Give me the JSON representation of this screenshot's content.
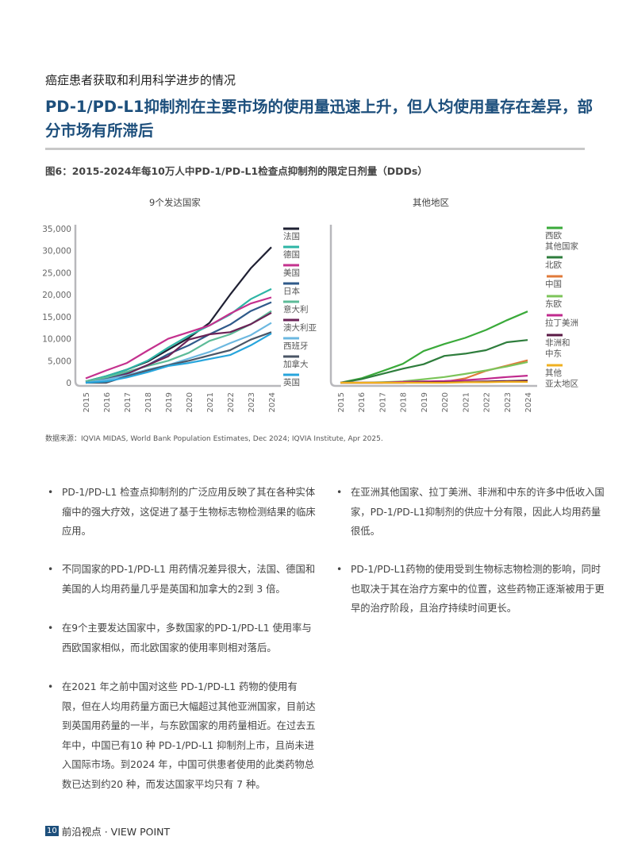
{
  "section_title": "癌症患者获取和利用科学进步的情况",
  "headline": "PD-1/PD-L1抑制剂在主要市场的使用量迅速上升，但人均使用量存在差异，部分市场有所滞后",
  "figure_title": "图6：2015-2024年每10万人中PD-1/PD-L1检查点抑制剂的限定日剂量（DDDs）",
  "source": "数据来源：IQVIA MIDAS, World Bank Population Estimates, Dec 2024; IQVIA Institute, Apr 2025.",
  "chart_data": [
    {
      "type": "line",
      "title": "9个发达国家",
      "x": [
        "2015",
        "2016",
        "2017",
        "2018",
        "2019",
        "2020",
        "2021",
        "2022",
        "2023",
        "2024"
      ],
      "ylim": [
        0,
        35000
      ],
      "yticks": [
        "0",
        "5,000",
        "10,000",
        "15,000",
        "20,000",
        "25,000",
        "30,000",
        "35,000"
      ],
      "legend": "right",
      "series": [
        {
          "name": "法国",
          "color": "#1f2033",
          "values": [
            300,
            1500,
            3000,
            4800,
            7500,
            10200,
            13600,
            20000,
            26000,
            30800
          ]
        },
        {
          "name": "德国",
          "color": "#2db5a5",
          "values": [
            300,
            1500,
            3000,
            5000,
            8000,
            10700,
            13000,
            15500,
            19000,
            21300
          ]
        },
        {
          "name": "美国",
          "color": "#c4318e",
          "values": [
            1000,
            2800,
            4500,
            7300,
            10000,
            11500,
            13000,
            15700,
            18000,
            19400
          ]
        },
        {
          "name": "日本",
          "color": "#2f5a8a",
          "values": [
            0,
            1000,
            2200,
            4000,
            6500,
            8500,
            11000,
            13200,
            16300,
            18300
          ]
        },
        {
          "name": "意大利",
          "color": "#5dbb98",
          "values": [
            300,
            1200,
            2500,
            3800,
            5000,
            6800,
            9500,
            11000,
            13300,
            16300
          ]
        },
        {
          "name": "澳大利亚",
          "color": "#6b2357",
          "values": [
            0,
            700,
            2000,
            4000,
            6000,
            9800,
            11000,
            11500,
            13300,
            15900
          ]
        },
        {
          "name": "西班牙",
          "color": "#6cb8e0",
          "values": [
            0,
            700,
            1700,
            3000,
            4000,
            5500,
            7000,
            9000,
            10800,
            13600
          ]
        },
        {
          "name": "加拿大",
          "color": "#4a5566",
          "values": [
            0,
            0,
            1500,
            2800,
            4000,
            5000,
            6200,
            7400,
            9800,
            11500
          ]
        },
        {
          "name": "英国",
          "color": "#27a5dc",
          "values": [
            0,
            300,
            1200,
            2400,
            3800,
            4500,
            5400,
            6300,
            8500,
            11200
          ]
        }
      ]
    },
    {
      "type": "line",
      "title": "其他地区",
      "x": [
        "2015",
        "2016",
        "2017",
        "2018",
        "2019",
        "2020",
        "2021",
        "2022",
        "2023",
        "2024"
      ],
      "ylim": [
        0,
        35000
      ],
      "legend": "right",
      "series": [
        {
          "name": "西欧其他国家",
          "color": "#3aaa3a",
          "values": [
            0,
            1000,
            2600,
            4300,
            7200,
            8800,
            10200,
            12000,
            14200,
            16200
          ]
        },
        {
          "name": "北欧",
          "color": "#2e7d3c",
          "values": [
            0,
            800,
            2000,
            3200,
            4200,
            6100,
            6600,
            7400,
            9200,
            9700
          ]
        },
        {
          "name": "中国",
          "color": "#e07a3a",
          "values": [
            0,
            0,
            0,
            0,
            100,
            200,
            1000,
            2700,
            3900,
            5100
          ]
        },
        {
          "name": "东欧",
          "color": "#7cc45a",
          "values": [
            0,
            0,
            100,
            300,
            800,
            1300,
            2000,
            2800,
            3700,
            4700
          ]
        },
        {
          "name": "拉丁美洲",
          "color": "#c02a8e",
          "values": [
            0,
            0,
            0,
            200,
            300,
            400,
            600,
            900,
            1300,
            1600
          ]
        },
        {
          "name": "非洲和中东",
          "color": "#5a1a45",
          "values": [
            0,
            0,
            0,
            0,
            100,
            100,
            200,
            300,
            400,
            500
          ]
        },
        {
          "name": "其他亚太地区",
          "color": "#f0b020",
          "values": [
            0,
            0,
            0,
            0,
            0,
            0,
            100,
            100,
            200,
            200
          ]
        }
      ]
    }
  ],
  "legend_labels_right": [
    [
      "西欧",
      "其他国家"
    ],
    [
      "北欧"
    ],
    [
      "中国"
    ],
    [
      "东欧"
    ],
    [
      "拉丁美洲"
    ],
    [
      "非洲和",
      "中东"
    ],
    [
      "其他",
      "亚太地区"
    ]
  ],
  "bullets_left": [
    "PD-1/PD-L1 检查点抑制剂的广泛应用反映了其在各种实体瘤中的强大疗效，这促进了基于生物标志物检测结果的临床应用。",
    "不同国家的PD-1/PD-L1 用药情况差异很大，法国、德国和美国的人均用药量几乎是英国和加拿大的2到 3 倍。",
    "在9个主要发达国家中，多数国家的PD-1/PD-L1 使用率与西欧国家相似，而北欧国家的使用率则相对落后。",
    "在2021 年之前中国对这些 PD-1/PD-L1 药物的使用有限，但在人均用药量方面已大幅超过其他亚洲国家，目前达到英国用药量的一半，与东欧国家的用药量相近。在过去五年中，中国已有10 种 PD-1/PD-L1 抑制剂上市，且尚未进入国际市场。到2024 年，中国可供患者使用的此类药物总数已达到约20 种，而发达国家平均只有 7 种。"
  ],
  "bullets_right": [
    "在亚洲其他国家、拉丁美洲、非洲和中东的许多中低收入国家，PD-1/PD-L1抑制剂的供应十分有限，因此人均用药量很低。",
    "PD-1/PD-L1药物的使用受到生物标志物检测的影响，同时也取决于其在治疗方案中的位置，这些药物正逐渐被用于更早的治疗阶段，且治疗持续时间更长。"
  ],
  "bullet_symbol": "•",
  "footer": {
    "page_number": "10",
    "label": "前沿视点 · VIEW POINT"
  }
}
